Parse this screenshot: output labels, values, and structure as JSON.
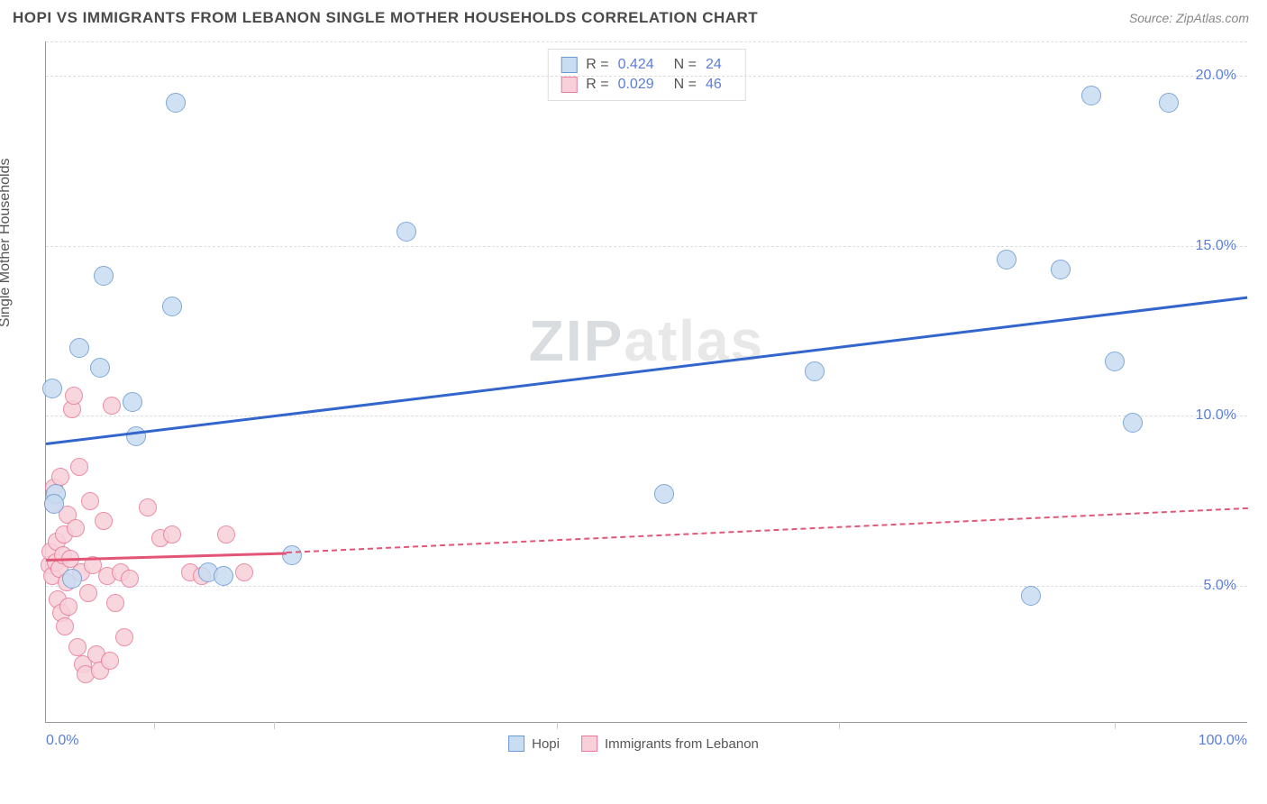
{
  "header": {
    "title": "HOPI VS IMMIGRANTS FROM LEBANON SINGLE MOTHER HOUSEHOLDS CORRELATION CHART",
    "source": "Source: ZipAtlas.com"
  },
  "axes": {
    "ylabel": "Single Mother Households",
    "xlim": [
      0,
      100
    ],
    "ylim": [
      1,
      21
    ],
    "xticks": [
      {
        "pos": 0,
        "label": "0.0%",
        "align": "left"
      },
      {
        "pos": 100,
        "label": "100.0%",
        "align": "right"
      }
    ],
    "yticks": [
      {
        "pos": 5,
        "label": "5.0%"
      },
      {
        "pos": 10,
        "label": "10.0%"
      },
      {
        "pos": 15,
        "label": "15.0%"
      },
      {
        "pos": 20,
        "label": "20.0%"
      }
    ],
    "xgrid_minor": [
      9,
      19,
      42.5,
      66,
      89
    ],
    "ygrid": [
      5,
      10,
      15,
      20,
      21
    ]
  },
  "series": {
    "hopi": {
      "label": "Hopi",
      "color_fill": "#c8dcf2",
      "color_stroke": "#6a99d0",
      "trend_color": "#3366cc",
      "r": "0.424",
      "n": "24",
      "point_size": 22,
      "trend": {
        "x1": 0,
        "y1": 9.2,
        "x2": 100,
        "y2": 13.5
      },
      "points": [
        {
          "x": 0.5,
          "y": 10.8
        },
        {
          "x": 0.8,
          "y": 7.7
        },
        {
          "x": 0.7,
          "y": 7.4
        },
        {
          "x": 2.2,
          "y": 5.2
        },
        {
          "x": 2.8,
          "y": 12.0
        },
        {
          "x": 4.5,
          "y": 11.4
        },
        {
          "x": 4.8,
          "y": 14.1
        },
        {
          "x": 7.2,
          "y": 10.4
        },
        {
          "x": 7.5,
          "y": 9.4
        },
        {
          "x": 10.5,
          "y": 13.2
        },
        {
          "x": 10.8,
          "y": 19.2
        },
        {
          "x": 13.5,
          "y": 5.4
        },
        {
          "x": 14.8,
          "y": 5.3
        },
        {
          "x": 20.5,
          "y": 5.9
        },
        {
          "x": 30.0,
          "y": 15.4
        },
        {
          "x": 51.5,
          "y": 7.7
        },
        {
          "x": 64.0,
          "y": 11.3
        },
        {
          "x": 80.0,
          "y": 14.6
        },
        {
          "x": 82.0,
          "y": 4.7
        },
        {
          "x": 84.5,
          "y": 14.3
        },
        {
          "x": 87.0,
          "y": 19.4
        },
        {
          "x": 89.0,
          "y": 11.6
        },
        {
          "x": 90.5,
          "y": 9.8
        },
        {
          "x": 93.5,
          "y": 19.2
        }
      ]
    },
    "lebanon": {
      "label": "Immigrants from Lebanon",
      "color_fill": "#f7d0d9",
      "color_stroke": "#e87b9a",
      "trend_color": "#e35577",
      "r": "0.029",
      "n": "46",
      "point_size": 20,
      "trend_solid": {
        "x1": 0,
        "y1": 5.8,
        "x2": 20,
        "y2": 6.0
      },
      "trend_dashed": {
        "x1": 20,
        "y1": 6.0,
        "x2": 100,
        "y2": 7.3
      },
      "points": [
        {
          "x": 0.3,
          "y": 5.6
        },
        {
          "x": 0.4,
          "y": 6.0
        },
        {
          "x": 0.5,
          "y": 5.3
        },
        {
          "x": 0.6,
          "y": 7.4
        },
        {
          "x": 0.7,
          "y": 7.9
        },
        {
          "x": 0.8,
          "y": 5.7
        },
        {
          "x": 0.9,
          "y": 6.3
        },
        {
          "x": 1.0,
          "y": 4.6
        },
        {
          "x": 1.1,
          "y": 5.5
        },
        {
          "x": 1.2,
          "y": 8.2
        },
        {
          "x": 1.3,
          "y": 4.2
        },
        {
          "x": 1.4,
          "y": 5.9
        },
        {
          "x": 1.5,
          "y": 6.5
        },
        {
          "x": 1.6,
          "y": 3.8
        },
        {
          "x": 1.7,
          "y": 5.1
        },
        {
          "x": 1.8,
          "y": 7.1
        },
        {
          "x": 1.9,
          "y": 4.4
        },
        {
          "x": 2.0,
          "y": 5.8
        },
        {
          "x": 2.2,
          "y": 10.2
        },
        {
          "x": 2.3,
          "y": 10.6
        },
        {
          "x": 2.5,
          "y": 6.7
        },
        {
          "x": 2.6,
          "y": 3.2
        },
        {
          "x": 2.8,
          "y": 8.5
        },
        {
          "x": 2.9,
          "y": 5.4
        },
        {
          "x": 3.1,
          "y": 2.7
        },
        {
          "x": 3.3,
          "y": 2.4
        },
        {
          "x": 3.5,
          "y": 4.8
        },
        {
          "x": 3.7,
          "y": 7.5
        },
        {
          "x": 3.9,
          "y": 5.6
        },
        {
          "x": 4.2,
          "y": 3.0
        },
        {
          "x": 4.5,
          "y": 2.5
        },
        {
          "x": 4.8,
          "y": 6.9
        },
        {
          "x": 5.1,
          "y": 5.3
        },
        {
          "x": 5.3,
          "y": 2.8
        },
        {
          "x": 5.5,
          "y": 10.3
        },
        {
          "x": 5.8,
          "y": 4.5
        },
        {
          "x": 6.2,
          "y": 5.4
        },
        {
          "x": 6.5,
          "y": 3.5
        },
        {
          "x": 7.0,
          "y": 5.2
        },
        {
          "x": 8.5,
          "y": 7.3
        },
        {
          "x": 9.5,
          "y": 6.4
        },
        {
          "x": 10.5,
          "y": 6.5
        },
        {
          "x": 12.0,
          "y": 5.4
        },
        {
          "x": 13.0,
          "y": 5.3
        },
        {
          "x": 15.0,
          "y": 6.5
        },
        {
          "x": 16.5,
          "y": 5.4
        }
      ]
    }
  },
  "watermark": {
    "zip": "ZIP",
    "atlas": "atlas"
  },
  "legend_stat": {
    "r_label": "R =",
    "n_label": "N ="
  }
}
